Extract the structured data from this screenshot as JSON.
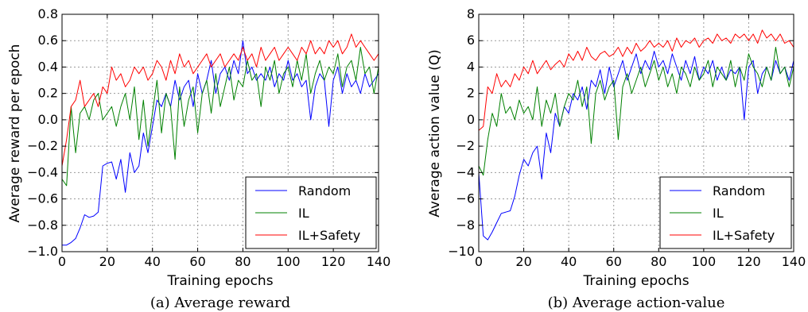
{
  "chart_data": [
    {
      "type": "line",
      "caption": "(a)  Average reward",
      "xlabel": "Training epochs",
      "ylabel": "Average reward per epoch",
      "xlim": [
        0,
        140
      ],
      "ylim": [
        -1.0,
        0.8
      ],
      "xticks": [
        0,
        20,
        40,
        60,
        80,
        100,
        120,
        140
      ],
      "yticks": [
        -1.0,
        -0.8,
        -0.6,
        -0.4,
        -0.2,
        0.0,
        0.2,
        0.4,
        0.6,
        0.8
      ],
      "ytick_labels": [
        "−1.0",
        "−0.8",
        "−0.6",
        "−0.4",
        "−0.2",
        "0.0",
        "0.2",
        "0.4",
        "0.6",
        "0.8"
      ],
      "grid": true,
      "legend_position": "lower-right",
      "series": [
        {
          "name": "Random",
          "color": "#0000ff",
          "x": [
            0,
            2,
            4,
            6,
            8,
            10,
            12,
            14,
            16,
            18,
            20,
            22,
            24,
            26,
            28,
            30,
            32,
            34,
            36,
            38,
            40,
            42,
            44,
            46,
            48,
            50,
            52,
            54,
            56,
            58,
            60,
            62,
            64,
            66,
            68,
            70,
            72,
            74,
            76,
            78,
            80,
            82,
            84,
            86,
            88,
            90,
            92,
            94,
            96,
            98,
            100,
            102,
            104,
            106,
            108,
            110,
            112,
            114,
            116,
            118,
            120,
            122,
            124,
            126,
            128,
            130,
            132,
            134,
            136,
            138,
            140
          ],
          "y": [
            -0.95,
            -0.95,
            -0.93,
            -0.9,
            -0.82,
            -0.72,
            -0.74,
            -0.73,
            -0.7,
            -0.35,
            -0.33,
            -0.32,
            -0.45,
            -0.3,
            -0.55,
            -0.25,
            -0.4,
            -0.35,
            -0.1,
            -0.25,
            -0.05,
            0.15,
            0.1,
            0.2,
            0.1,
            0.3,
            0.15,
            0.25,
            0.3,
            0.1,
            0.35,
            0.2,
            0.3,
            0.45,
            0.2,
            0.35,
            0.4,
            0.3,
            0.45,
            0.35,
            0.6,
            0.35,
            0.4,
            0.3,
            0.35,
            0.3,
            0.4,
            0.25,
            0.35,
            0.3,
            0.45,
            0.3,
            0.35,
            0.25,
            0.3,
            0.0,
            0.25,
            0.35,
            0.3,
            -0.05,
            0.3,
            0.4,
            0.2,
            0.35,
            0.25,
            0.3,
            0.2,
            0.35,
            0.25,
            0.3,
            0.35
          ]
        },
        {
          "name": "IL",
          "color": "#008000",
          "x": [
            0,
            2,
            4,
            6,
            8,
            10,
            12,
            14,
            16,
            18,
            20,
            22,
            24,
            26,
            28,
            30,
            32,
            34,
            36,
            38,
            40,
            42,
            44,
            46,
            48,
            50,
            52,
            54,
            56,
            58,
            60,
            62,
            64,
            66,
            68,
            70,
            72,
            74,
            76,
            78,
            80,
            82,
            84,
            86,
            88,
            90,
            92,
            94,
            96,
            98,
            100,
            102,
            104,
            106,
            108,
            110,
            112,
            114,
            116,
            118,
            120,
            122,
            124,
            126,
            128,
            130,
            132,
            134,
            136,
            138,
            140
          ],
          "y": [
            -0.45,
            -0.5,
            0.1,
            -0.25,
            0.05,
            0.1,
            0.0,
            0.15,
            0.2,
            0.0,
            0.05,
            0.1,
            -0.05,
            0.1,
            0.2,
            0.0,
            0.25,
            -0.15,
            0.15,
            -0.2,
            0.05,
            0.3,
            -0.1,
            0.2,
            0.1,
            -0.3,
            0.25,
            -0.05,
            0.15,
            0.25,
            -0.1,
            0.2,
            0.3,
            0.05,
            0.35,
            0.1,
            0.25,
            0.4,
            0.15,
            0.3,
            0.25,
            0.45,
            0.3,
            0.35,
            0.1,
            0.4,
            0.3,
            0.45,
            0.2,
            0.35,
            0.4,
            0.25,
            0.45,
            0.3,
            0.5,
            0.2,
            0.35,
            0.45,
            0.3,
            0.4,
            0.35,
            0.5,
            0.25,
            0.4,
            0.45,
            0.3,
            0.55,
            0.35,
            0.4,
            0.2,
            0.4
          ]
        },
        {
          "name": "IL+Safety",
          "color": "#ff0000",
          "x": [
            0,
            2,
            4,
            6,
            8,
            10,
            12,
            14,
            16,
            18,
            20,
            22,
            24,
            26,
            28,
            30,
            32,
            34,
            36,
            38,
            40,
            42,
            44,
            46,
            48,
            50,
            52,
            54,
            56,
            58,
            60,
            62,
            64,
            66,
            68,
            70,
            72,
            74,
            76,
            78,
            80,
            82,
            84,
            86,
            88,
            90,
            92,
            94,
            96,
            98,
            100,
            102,
            104,
            106,
            108,
            110,
            112,
            114,
            116,
            118,
            120,
            122,
            124,
            126,
            128,
            130,
            132,
            134,
            136,
            138,
            140
          ],
          "y": [
            -0.35,
            -0.15,
            0.1,
            0.15,
            0.3,
            0.1,
            0.15,
            0.2,
            0.1,
            0.25,
            0.2,
            0.4,
            0.3,
            0.35,
            0.25,
            0.3,
            0.4,
            0.35,
            0.4,
            0.3,
            0.35,
            0.45,
            0.4,
            0.3,
            0.45,
            0.35,
            0.5,
            0.4,
            0.45,
            0.35,
            0.4,
            0.45,
            0.5,
            0.4,
            0.45,
            0.5,
            0.4,
            0.45,
            0.5,
            0.45,
            0.55,
            0.45,
            0.5,
            0.4,
            0.55,
            0.45,
            0.5,
            0.55,
            0.45,
            0.5,
            0.55,
            0.5,
            0.45,
            0.55,
            0.5,
            0.6,
            0.5,
            0.55,
            0.5,
            0.6,
            0.55,
            0.6,
            0.5,
            0.55,
            0.65,
            0.55,
            0.6,
            0.55,
            0.5,
            0.45,
            0.5
          ]
        }
      ]
    },
    {
      "type": "line",
      "caption": "(b)  Average action-value",
      "xlabel": "Training epochs",
      "ylabel": "Average action value (Q)",
      "xlim": [
        0,
        140
      ],
      "ylim": [
        -10,
        8
      ],
      "xticks": [
        0,
        20,
        40,
        60,
        80,
        100,
        120,
        140
      ],
      "yticks": [
        -10,
        -8,
        -6,
        -4,
        -2,
        0,
        2,
        4,
        6,
        8
      ],
      "ytick_labels": [
        "−10",
        "−8",
        "−6",
        "−4",
        "−2",
        "0",
        "2",
        "4",
        "6",
        "8"
      ],
      "grid": true,
      "legend_position": "lower-right",
      "series": [
        {
          "name": "Random",
          "color": "#0000ff",
          "x": [
            0,
            2,
            4,
            6,
            8,
            10,
            12,
            14,
            16,
            18,
            20,
            22,
            24,
            26,
            28,
            30,
            32,
            34,
            36,
            38,
            40,
            42,
            44,
            46,
            48,
            50,
            52,
            54,
            56,
            58,
            60,
            62,
            64,
            66,
            68,
            70,
            72,
            74,
            76,
            78,
            80,
            82,
            84,
            86,
            88,
            90,
            92,
            94,
            96,
            98,
            100,
            102,
            104,
            106,
            108,
            110,
            112,
            114,
            116,
            118,
            120,
            122,
            124,
            126,
            128,
            130,
            132,
            134,
            136,
            138,
            140
          ],
          "y": [
            -4,
            -8.8,
            -9.1,
            -8.5,
            -7.8,
            -7.1,
            -7.0,
            -6.9,
            -5.8,
            -4.2,
            -3.0,
            -3.5,
            -2.5,
            -2.0,
            -4.5,
            -1.0,
            -2.5,
            0.5,
            -0.5,
            1.0,
            0.5,
            2.0,
            1.5,
            2.5,
            0.8,
            3.0,
            2.5,
            3.8,
            2.0,
            4.0,
            2.5,
            3.5,
            4.5,
            3.0,
            4.0,
            5.0,
            3.5,
            4.5,
            3.8,
            5.2,
            4.0,
            4.5,
            3.5,
            5.0,
            4.0,
            3.0,
            4.5,
            3.5,
            4.8,
            3.0,
            4.0,
            3.5,
            4.5,
            3.0,
            4.0,
            3.0,
            3.8,
            3.5,
            4.0,
            0.0,
            4.0,
            4.5,
            2.0,
            3.5,
            4.0,
            3.0,
            4.5,
            3.5,
            4.0,
            3.0,
            4.5
          ]
        },
        {
          "name": "IL",
          "color": "#008000",
          "x": [
            0,
            2,
            4,
            6,
            8,
            10,
            12,
            14,
            16,
            18,
            20,
            22,
            24,
            26,
            28,
            30,
            32,
            34,
            36,
            38,
            40,
            42,
            44,
            46,
            48,
            50,
            52,
            54,
            56,
            58,
            60,
            62,
            64,
            66,
            68,
            70,
            72,
            74,
            76,
            78,
            80,
            82,
            84,
            86,
            88,
            90,
            92,
            94,
            96,
            98,
            100,
            102,
            104,
            106,
            108,
            110,
            112,
            114,
            116,
            118,
            120,
            122,
            124,
            126,
            128,
            130,
            132,
            134,
            136,
            138,
            140
          ],
          "y": [
            -3.5,
            -4.2,
            -1.5,
            0.5,
            -0.5,
            2.0,
            0.5,
            1.0,
            0.0,
            1.5,
            0.5,
            1.0,
            0.0,
            2.5,
            -0.5,
            1.5,
            0.5,
            2.0,
            -0.5,
            1.0,
            2.0,
            1.5,
            3.0,
            1.0,
            2.5,
            -1.8,
            2.0,
            3.0,
            1.5,
            2.5,
            3.0,
            -1.5,
            2.5,
            3.5,
            2.0,
            3.0,
            4.0,
            2.5,
            3.5,
            4.5,
            3.0,
            4.0,
            2.5,
            3.5,
            2.0,
            4.0,
            3.5,
            2.5,
            4.0,
            3.0,
            3.5,
            4.5,
            2.5,
            4.0,
            3.5,
            3.0,
            4.5,
            2.5,
            4.0,
            3.0,
            5.0,
            4.0,
            3.5,
            2.5,
            4.0,
            3.0,
            5.5,
            3.5,
            4.0,
            2.5,
            4.0
          ]
        },
        {
          "name": "IL+Safety",
          "color": "#ff0000",
          "x": [
            0,
            2,
            4,
            6,
            8,
            10,
            12,
            14,
            16,
            18,
            20,
            22,
            24,
            26,
            28,
            30,
            32,
            34,
            36,
            38,
            40,
            42,
            44,
            46,
            48,
            50,
            52,
            54,
            56,
            58,
            60,
            62,
            64,
            66,
            68,
            70,
            72,
            74,
            76,
            78,
            80,
            82,
            84,
            86,
            88,
            90,
            92,
            94,
            96,
            98,
            100,
            102,
            104,
            106,
            108,
            110,
            112,
            114,
            116,
            118,
            120,
            122,
            124,
            126,
            128,
            130,
            132,
            134,
            136,
            138,
            140
          ],
          "y": [
            -0.8,
            -0.5,
            2.5,
            2.0,
            3.5,
            2.5,
            3.0,
            2.5,
            3.5,
            3.0,
            4.0,
            3.5,
            4.5,
            3.5,
            4.0,
            4.5,
            3.8,
            4.2,
            4.5,
            4.0,
            5.0,
            4.5,
            5.2,
            4.5,
            5.5,
            4.8,
            4.5,
            5.0,
            5.2,
            4.8,
            5.0,
            5.5,
            4.8,
            5.5,
            5.0,
            5.8,
            5.2,
            5.5,
            6.0,
            5.5,
            5.8,
            5.5,
            6.0,
            5.2,
            6.2,
            5.5,
            6.0,
            5.8,
            6.2,
            5.5,
            6.0,
            6.2,
            5.8,
            6.5,
            6.0,
            6.2,
            5.8,
            6.5,
            6.2,
            6.5,
            6.0,
            6.5,
            5.8,
            6.8,
            6.2,
            6.5,
            6.0,
            6.5,
            5.8,
            6.0,
            5.5
          ]
        }
      ]
    }
  ]
}
